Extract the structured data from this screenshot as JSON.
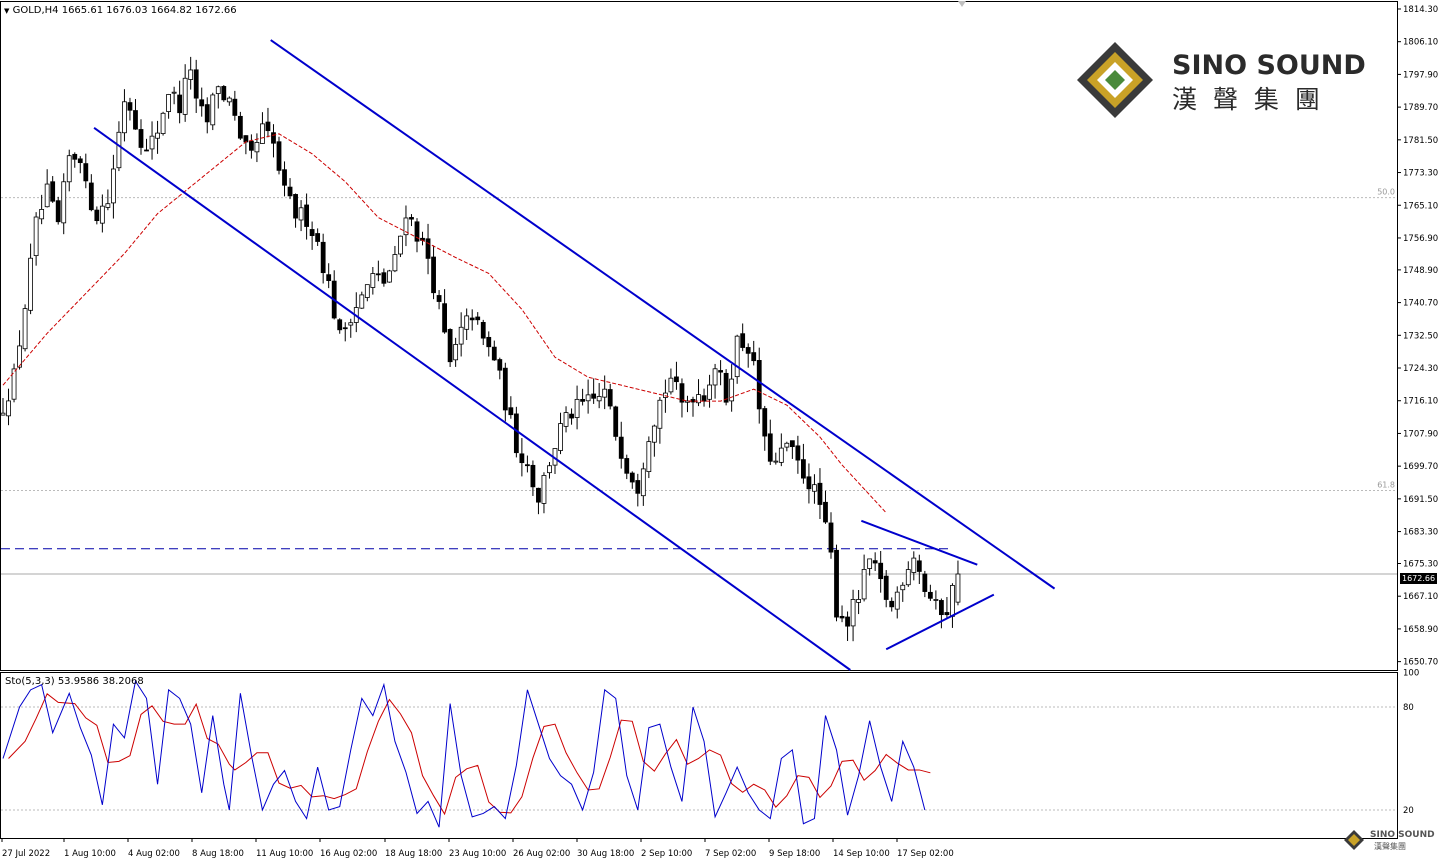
{
  "header": {
    "symbol_info": "GOLD,H4  1665.61 1676.03 1664.82 1672.66",
    "current_price": "1672.66"
  },
  "indicator": {
    "label": "Sto(5,3,3) 53.9586 38.2068",
    "levels": [
      "100",
      "80",
      "20"
    ]
  },
  "logo": {
    "name": "SINO SOUND",
    "chinese": "漢 聲 集 團",
    "small_name": "SINO SOUND",
    "small_chinese": "漢聲集團"
  },
  "colors": {
    "candles": "#000000",
    "channel": "#0000cc",
    "ma": "#cc0000",
    "stoch_main": "#0000cc",
    "stoch_signal": "#cc0000",
    "fib_line": "#bbbbbb",
    "logo_gold": "#c9a227"
  },
  "chart_data": {
    "type": "candlestick",
    "symbol": "GOLD",
    "timeframe": "H4",
    "last_bar": {
      "open": 1665.61,
      "high": 1676.03,
      "low": 1664.82,
      "close": 1672.66
    },
    "y_ticks": [
      "1814.30",
      "1806.10",
      "1797.90",
      "1789.70",
      "1781.50",
      "1773.30",
      "1765.10",
      "1756.90",
      "1748.90",
      "1740.70",
      "1732.50",
      "1724.30",
      "1716.10",
      "1707.90",
      "1699.70",
      "1691.50",
      "1683.30",
      "1675.30",
      "1667.10",
      "1658.90",
      "1650.70"
    ],
    "ylim": [
      1648.6,
      1816.3
    ],
    "x_labels": [
      "27 Jul 2022",
      "1 Aug 10:00",
      "4 Aug 02:00",
      "8 Aug 18:00",
      "11 Aug 10:00",
      "16 Aug 02:00",
      "18 Aug 18:00",
      "23 Aug 10:00",
      "26 Aug 02:00",
      "30 Aug 18:00",
      "2 Sep 10:00",
      "7 Sep 02:00",
      "9 Sep 18:00",
      "14 Sep 10:00",
      "17 Sep 02:00"
    ],
    "fib_levels": [
      {
        "label": "50.0",
        "price": 1767.0
      },
      {
        "label": "61.8",
        "price": 1693.6
      }
    ],
    "close_path": [
      [
        0,
        1715
      ],
      [
        2,
        1722
      ],
      [
        4,
        1740
      ],
      [
        6,
        1760
      ],
      [
        8,
        1768
      ],
      [
        10,
        1760
      ],
      [
        12,
        1777
      ],
      [
        14,
        1778
      ],
      [
        15,
        1769
      ],
      [
        17,
        1763
      ],
      [
        19,
        1766
      ],
      [
        22,
        1792
      ],
      [
        23,
        1790
      ],
      [
        26,
        1778
      ],
      [
        28,
        1784
      ],
      [
        30,
        1794
      ],
      [
        32,
        1790
      ],
      [
        34,
        1800
      ],
      [
        35,
        1790
      ],
      [
        37,
        1786
      ],
      [
        39,
        1796
      ],
      [
        40,
        1791
      ],
      [
        41,
        1793
      ],
      [
        43,
        1780
      ],
      [
        45,
        1777
      ],
      [
        47,
        1784
      ],
      [
        49,
        1780
      ],
      [
        51,
        1768
      ],
      [
        53,
        1763
      ],
      [
        55,
        1762
      ],
      [
        57,
        1756
      ],
      [
        59,
        1745
      ],
      [
        61,
        1732
      ],
      [
        63,
        1738
      ],
      [
        65,
        1742
      ],
      [
        67,
        1747
      ],
      [
        69,
        1746
      ],
      [
        71,
        1751
      ],
      [
        73,
        1764
      ],
      [
        75,
        1758
      ],
      [
        77,
        1752
      ],
      [
        79,
        1739
      ],
      [
        81,
        1725
      ],
      [
        83,
        1733
      ],
      [
        85,
        1738
      ],
      [
        87,
        1731
      ],
      [
        89,
        1727
      ],
      [
        91,
        1716
      ],
      [
        93,
        1705
      ],
      [
        95,
        1700
      ],
      [
        97,
        1692
      ],
      [
        99,
        1701
      ],
      [
        101,
        1709
      ],
      [
        103,
        1713
      ],
      [
        105,
        1715
      ],
      [
        107,
        1716
      ],
      [
        109,
        1718
      ],
      [
        111,
        1708
      ],
      [
        113,
        1700
      ],
      [
        115,
        1695
      ],
      [
        117,
        1708
      ],
      [
        119,
        1716
      ],
      [
        121,
        1722
      ],
      [
        123,
        1715
      ],
      [
        125,
        1718
      ],
      [
        127,
        1718
      ],
      [
        129,
        1725
      ],
      [
        131,
        1717
      ],
      [
        133,
        1731
      ],
      [
        135,
        1730
      ],
      [
        136,
        1724
      ],
      [
        138,
        1705
      ],
      [
        140,
        1700
      ],
      [
        142,
        1705
      ],
      [
        144,
        1700
      ],
      [
        146,
        1696
      ],
      [
        148,
        1690
      ],
      [
        150,
        1677
      ],
      [
        151,
        1664
      ],
      [
        153,
        1661
      ],
      [
        155,
        1667
      ],
      [
        157,
        1676
      ],
      [
        159,
        1670
      ],
      [
        161,
        1664
      ],
      [
        163,
        1672
      ],
      [
        165,
        1678
      ],
      [
        167,
        1669
      ],
      [
        169,
        1664
      ],
      [
        171,
        1664
      ],
      [
        173,
        1673
      ]
    ],
    "moving_average": [
      [
        0,
        1720
      ],
      [
        8,
        1733
      ],
      [
        15,
        1743
      ],
      [
        22,
        1753
      ],
      [
        28,
        1763
      ],
      [
        36,
        1772
      ],
      [
        44,
        1781
      ],
      [
        50,
        1783
      ],
      [
        56,
        1778
      ],
      [
        62,
        1771
      ],
      [
        68,
        1762
      ],
      [
        75,
        1757
      ],
      [
        82,
        1752
      ],
      [
        88,
        1748
      ],
      [
        94,
        1739
      ],
      [
        100,
        1727
      ],
      [
        106,
        1722
      ],
      [
        112,
        1720
      ],
      [
        118,
        1718
      ],
      [
        124,
        1716
      ],
      [
        130,
        1716
      ],
      [
        136,
        1719
      ],
      [
        142,
        1715
      ],
      [
        148,
        1707
      ],
      [
        152,
        1700
      ],
      [
        156,
        1694
      ],
      [
        160,
        1688
      ]
    ],
    "stochastic": {
      "levels": [
        20,
        80
      ],
      "main": [
        [
          0,
          50
        ],
        [
          3,
          80
        ],
        [
          5,
          90
        ],
        [
          7,
          93
        ],
        [
          9,
          65
        ],
        [
          12,
          88
        ],
        [
          14,
          68
        ],
        [
          16,
          52
        ],
        [
          18,
          23
        ],
        [
          20,
          70
        ],
        [
          22,
          62
        ],
        [
          24,
          95
        ],
        [
          26,
          85
        ],
        [
          28,
          35
        ],
        [
          30,
          90
        ],
        [
          32,
          85
        ],
        [
          34,
          70
        ],
        [
          36,
          30
        ],
        [
          38,
          75
        ],
        [
          40,
          35
        ],
        [
          41,
          20
        ],
        [
          43,
          88
        ],
        [
          45,
          52
        ],
        [
          47,
          20
        ],
        [
          49,
          35
        ],
        [
          51,
          43
        ],
        [
          53,
          25
        ],
        [
          55,
          15
        ],
        [
          57,
          45
        ],
        [
          59,
          20
        ],
        [
          61,
          22
        ],
        [
          63,
          55
        ],
        [
          65,
          85
        ],
        [
          67,
          75
        ],
        [
          69,
          93
        ],
        [
          71,
          60
        ],
        [
          73,
          42
        ],
        [
          75,
          18
        ],
        [
          77,
          25
        ],
        [
          79,
          10
        ],
        [
          81,
          82
        ],
        [
          83,
          40
        ],
        [
          85,
          16
        ],
        [
          87,
          18
        ],
        [
          89,
          22
        ],
        [
          91,
          15
        ],
        [
          93,
          46
        ],
        [
          95,
          90
        ],
        [
          97,
          70
        ],
        [
          99,
          50
        ],
        [
          101,
          40
        ],
        [
          103,
          35
        ],
        [
          105,
          20
        ],
        [
          107,
          42
        ],
        [
          109,
          90
        ],
        [
          111,
          85
        ],
        [
          113,
          40
        ],
        [
          115,
          20
        ],
        [
          117,
          68
        ],
        [
          119,
          70
        ],
        [
          121,
          45
        ],
        [
          123,
          25
        ],
        [
          125,
          80
        ],
        [
          127,
          60
        ],
        [
          129,
          16
        ],
        [
          131,
          30
        ],
        [
          133,
          45
        ],
        [
          135,
          30
        ],
        [
          137,
          20
        ],
        [
          139,
          15
        ],
        [
          141,
          50
        ],
        [
          143,
          55
        ],
        [
          145,
          12
        ],
        [
          147,
          15
        ],
        [
          149,
          75
        ],
        [
          151,
          55
        ],
        [
          153,
          17
        ],
        [
          155,
          40
        ],
        [
          157,
          72
        ],
        [
          159,
          45
        ],
        [
          161,
          25
        ],
        [
          163,
          60
        ],
        [
          165,
          45
        ],
        [
          167,
          20
        ]
      ]
    }
  }
}
